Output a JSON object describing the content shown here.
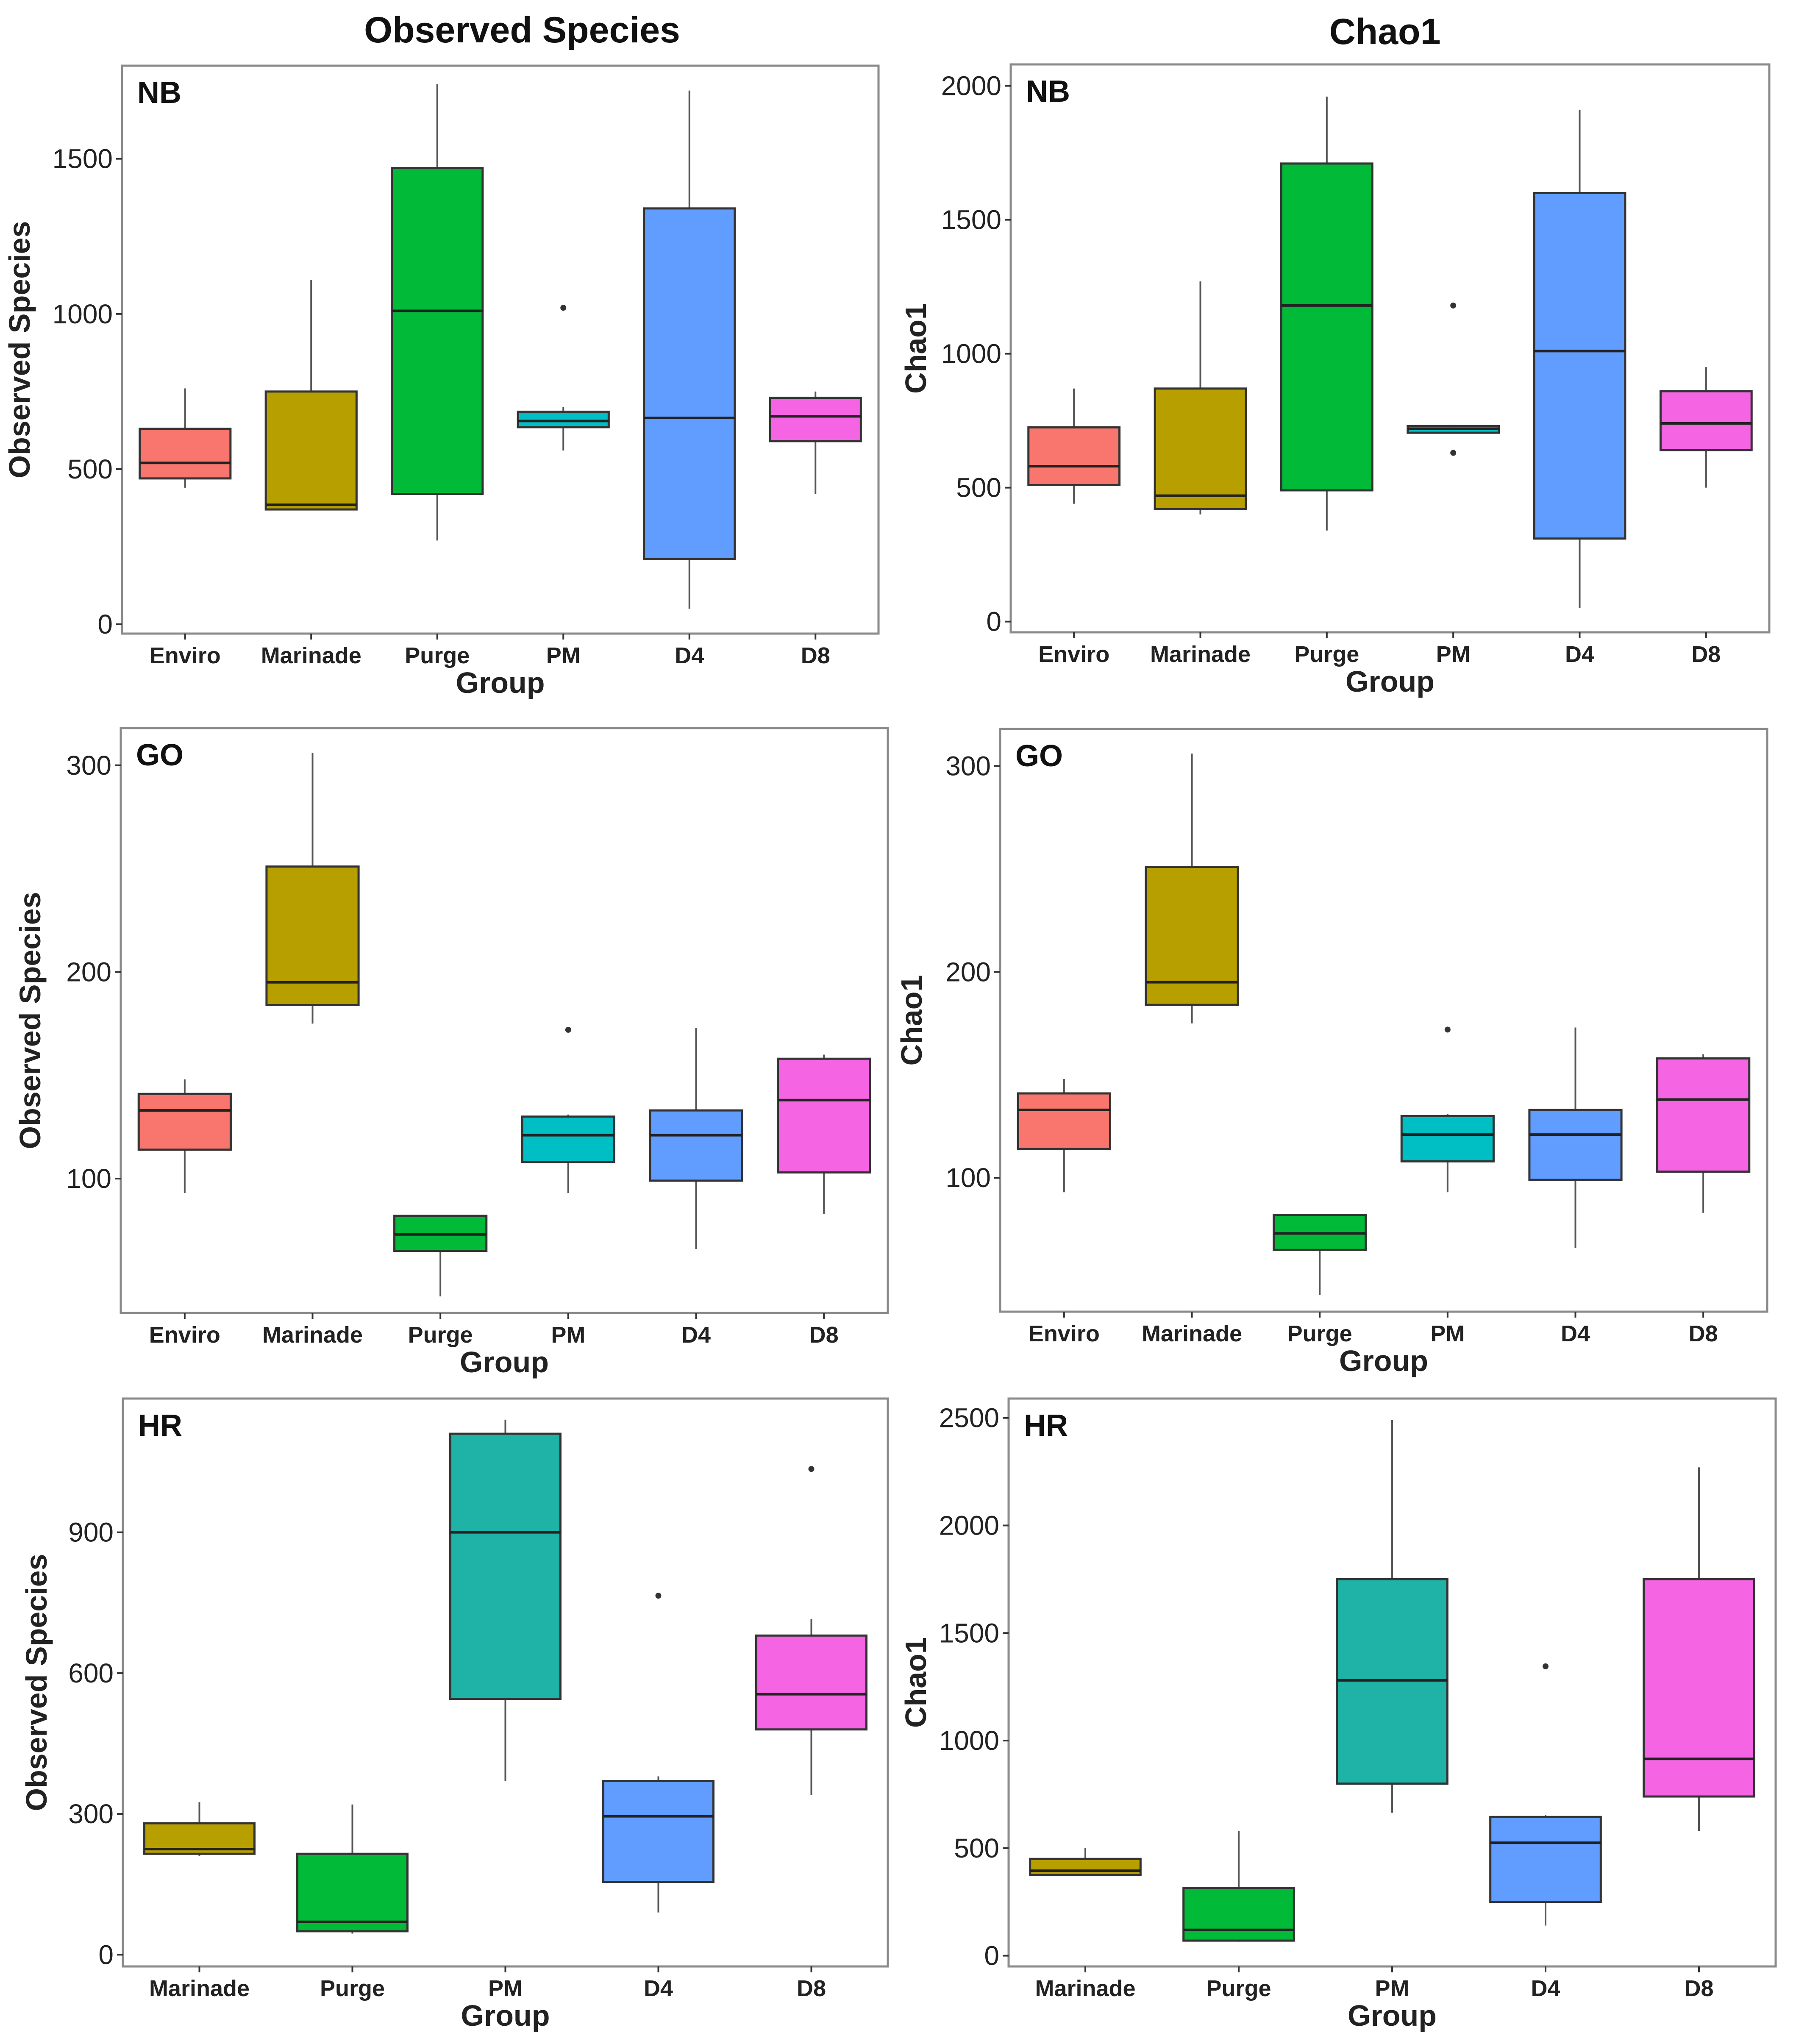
{
  "column_titles": [
    "Observed Species",
    "Chao1"
  ],
  "colors": {
    "Enviro": "#F8766D",
    "Marinade": "#B79F00",
    "Purge": "#00BA38",
    "PM": "#00BFC4",
    "PM_HR": "#1EB3A6",
    "D4": "#619CFF",
    "D8": "#F564E3"
  },
  "chart_data": [
    {
      "type": "box",
      "site": "NB",
      "title": "",
      "xlabel": "Group",
      "ylabel": "Observed Species",
      "ylim": [
        -30,
        1800
      ],
      "yticks": [
        0,
        500,
        1000,
        1500
      ],
      "categories": [
        "Enviro",
        "Marinade",
        "Purge",
        "PM",
        "D4",
        "D8"
      ],
      "boxes": [
        {
          "group": "Enviro",
          "color_key": "Enviro",
          "min": 440,
          "q1": 470,
          "median": 520,
          "q3": 630,
          "max": 760,
          "outliers": []
        },
        {
          "group": "Marinade",
          "color_key": "Marinade",
          "min": 370,
          "q1": 370,
          "median": 385,
          "q3": 750,
          "max": 1110,
          "outliers": []
        },
        {
          "group": "Purge",
          "color_key": "Purge",
          "min": 270,
          "q1": 420,
          "median": 1010,
          "q3": 1470,
          "max": 1740,
          "outliers": []
        },
        {
          "group": "PM",
          "color_key": "PM",
          "min": 560,
          "q1": 635,
          "median": 655,
          "q3": 685,
          "max": 700,
          "outliers": [
            1020
          ]
        },
        {
          "group": "D4",
          "color_key": "D4",
          "min": 50,
          "q1": 210,
          "median": 665,
          "q3": 1340,
          "max": 1720,
          "outliers": []
        },
        {
          "group": "D8",
          "color_key": "D8",
          "min": 420,
          "q1": 590,
          "median": 670,
          "q3": 730,
          "max": 750,
          "outliers": []
        }
      ]
    },
    {
      "type": "box",
      "site": "NB",
      "title": "",
      "xlabel": "Group",
      "ylabel": "Chao1",
      "ylim": [
        -40,
        2080
      ],
      "yticks": [
        0,
        500,
        1000,
        1500,
        2000
      ],
      "categories": [
        "Enviro",
        "Marinade",
        "Purge",
        "PM",
        "D4",
        "D8"
      ],
      "boxes": [
        {
          "group": "Enviro",
          "color_key": "Enviro",
          "min": 440,
          "q1": 510,
          "median": 580,
          "q3": 725,
          "max": 870,
          "outliers": []
        },
        {
          "group": "Marinade",
          "color_key": "Marinade",
          "min": 400,
          "q1": 420,
          "median": 470,
          "q3": 870,
          "max": 1270,
          "outliers": []
        },
        {
          "group": "Purge",
          "color_key": "Purge",
          "min": 340,
          "q1": 490,
          "median": 1180,
          "q3": 1710,
          "max": 1960,
          "outliers": []
        },
        {
          "group": "PM",
          "color_key": "PM",
          "min": 705,
          "q1": 705,
          "median": 720,
          "q3": 730,
          "max": 735,
          "outliers": [
            1180,
            630
          ]
        },
        {
          "group": "D4",
          "color_key": "D4",
          "min": 50,
          "q1": 310,
          "median": 1010,
          "q3": 1600,
          "max": 1910,
          "outliers": []
        },
        {
          "group": "D8",
          "color_key": "D8",
          "min": 500,
          "q1": 640,
          "median": 740,
          "q3": 860,
          "max": 950,
          "outliers": []
        }
      ]
    },
    {
      "type": "box",
      "site": "GO",
      "title": "",
      "xlabel": "Group",
      "ylabel": "Observed Species",
      "ylim": [
        35,
        318
      ],
      "yticks": [
        100,
        200,
        300
      ],
      "categories": [
        "Enviro",
        "Marinade",
        "Purge",
        "PM",
        "D4",
        "D8"
      ],
      "boxes": [
        {
          "group": "Enviro",
          "color_key": "Enviro",
          "min": 93,
          "q1": 114,
          "median": 133,
          "q3": 141,
          "max": 148,
          "outliers": []
        },
        {
          "group": "Marinade",
          "color_key": "Marinade",
          "min": 175,
          "q1": 184,
          "median": 195,
          "q3": 251,
          "max": 306,
          "outliers": []
        },
        {
          "group": "Purge",
          "color_key": "Purge",
          "min": 43,
          "q1": 65,
          "median": 73,
          "q3": 82,
          "max": 82,
          "outliers": []
        },
        {
          "group": "PM",
          "color_key": "PM",
          "min": 93,
          "q1": 108,
          "median": 121,
          "q3": 130,
          "max": 131,
          "outliers": [
            172
          ]
        },
        {
          "group": "D4",
          "color_key": "D4",
          "min": 66,
          "q1": 99,
          "median": 121,
          "q3": 133,
          "max": 173,
          "outliers": []
        },
        {
          "group": "D8",
          "color_key": "D8",
          "min": 83,
          "q1": 103,
          "median": 138,
          "q3": 158,
          "max": 160,
          "outliers": []
        }
      ]
    },
    {
      "type": "box",
      "site": "GO",
      "title": "",
      "xlabel": "Group",
      "ylabel": "Chao1",
      "ylim": [
        35,
        318
      ],
      "yticks": [
        100,
        200,
        300
      ],
      "categories": [
        "Enviro",
        "Marinade",
        "Purge",
        "PM",
        "D4",
        "D8"
      ],
      "boxes": [
        {
          "group": "Enviro",
          "color_key": "Enviro",
          "min": 93,
          "q1": 114,
          "median": 133,
          "q3": 141,
          "max": 148,
          "outliers": []
        },
        {
          "group": "Marinade",
          "color_key": "Marinade",
          "min": 175,
          "q1": 184,
          "median": 195,
          "q3": 251,
          "max": 306,
          "outliers": []
        },
        {
          "group": "Purge",
          "color_key": "Purge",
          "min": 43,
          "q1": 65,
          "median": 73,
          "q3": 82,
          "max": 82,
          "outliers": []
        },
        {
          "group": "PM",
          "color_key": "PM",
          "min": 93,
          "q1": 108,
          "median": 121,
          "q3": 130,
          "max": 131,
          "outliers": [
            172
          ]
        },
        {
          "group": "D4",
          "color_key": "D4",
          "min": 66,
          "q1": 99,
          "median": 121,
          "q3": 133,
          "max": 173,
          "outliers": []
        },
        {
          "group": "D8",
          "color_key": "D8",
          "min": 83,
          "q1": 103,
          "median": 138,
          "q3": 158,
          "max": 160,
          "outliers": []
        }
      ]
    },
    {
      "type": "box",
      "site": "HR",
      "title": "",
      "xlabel": "Group",
      "ylabel": "Observed Species",
      "ylim": [
        -25,
        1185
      ],
      "yticks": [
        0,
        300,
        600,
        900
      ],
      "categories": [
        "Marinade",
        "Purge",
        "PM",
        "D4",
        "D8"
      ],
      "boxes": [
        {
          "group": "Marinade",
          "color_key": "Marinade",
          "min": 210,
          "q1": 215,
          "median": 225,
          "q3": 280,
          "max": 325,
          "outliers": []
        },
        {
          "group": "Purge",
          "color_key": "Purge",
          "min": 45,
          "q1": 50,
          "median": 70,
          "q3": 215,
          "max": 320,
          "outliers": []
        },
        {
          "group": "PM",
          "color_key": "PM_HR",
          "min": 370,
          "q1": 545,
          "median": 900,
          "q3": 1110,
          "max": 1140,
          "outliers": []
        },
        {
          "group": "D4",
          "color_key": "D4",
          "min": 90,
          "q1": 155,
          "median": 295,
          "q3": 370,
          "max": 380,
          "outliers": [
            765
          ]
        },
        {
          "group": "D8",
          "color_key": "D8",
          "min": 340,
          "q1": 480,
          "median": 555,
          "q3": 680,
          "max": 715,
          "outliers": [
            1035
          ]
        }
      ]
    },
    {
      "type": "box",
      "site": "HR",
      "title": "",
      "xlabel": "Group",
      "ylabel": "Chao1",
      "ylim": [
        -50,
        2590
      ],
      "yticks": [
        0,
        500,
        1000,
        1500,
        2000,
        2500
      ],
      "categories": [
        "Marinade",
        "Purge",
        "PM",
        "D4",
        "D8"
      ],
      "boxes": [
        {
          "group": "Marinade",
          "color_key": "Marinade",
          "min": 370,
          "q1": 375,
          "median": 395,
          "q3": 450,
          "max": 500,
          "outliers": []
        },
        {
          "group": "Purge",
          "color_key": "Purge",
          "min": 65,
          "q1": 70,
          "median": 120,
          "q3": 315,
          "max": 580,
          "outliers": []
        },
        {
          "group": "PM",
          "color_key": "PM_HR",
          "min": 665,
          "q1": 800,
          "median": 1280,
          "q3": 1750,
          "max": 2490,
          "outliers": []
        },
        {
          "group": "D4",
          "color_key": "D4",
          "min": 140,
          "q1": 250,
          "median": 525,
          "q3": 645,
          "max": 655,
          "outliers": [
            1345
          ]
        },
        {
          "group": "D8",
          "color_key": "D8",
          "min": 580,
          "q1": 740,
          "median": 915,
          "q3": 1750,
          "max": 2270,
          "outliers": []
        }
      ]
    }
  ]
}
